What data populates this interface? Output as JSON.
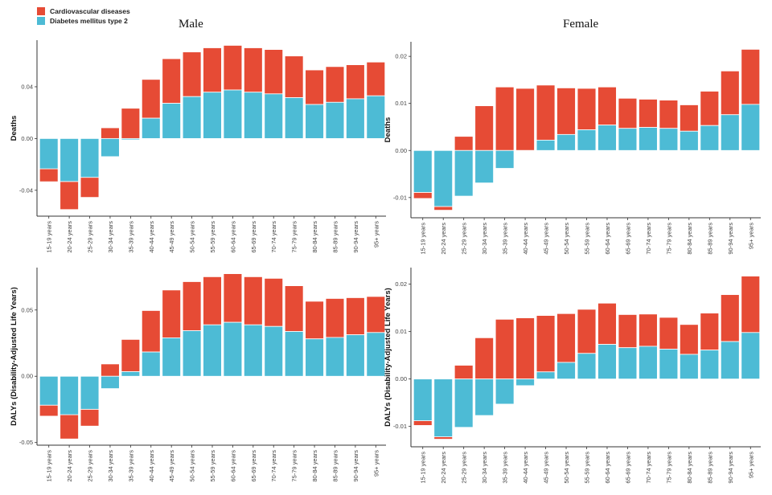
{
  "legend": {
    "items": [
      {
        "label": "Cardiovascular diseases",
        "color": "#E64B35"
      },
      {
        "label": "Diabetes mellitus type 2",
        "color": "#4DBBD5"
      }
    ]
  },
  "titles": {
    "male": "Male",
    "female": "Female"
  },
  "chart_data": [
    {
      "type": "bar",
      "stacked": true,
      "title": "Male",
      "ylabel": "Deaths",
      "xlabel": "",
      "ylim": [
        -0.06,
        0.076
      ],
      "yticks": [
        -0.04,
        0.0,
        0.04
      ],
      "ytick_labels": [
        "-0.04",
        "0.00",
        "0.04"
      ],
      "categories": [
        "15-19 years",
        "20-24 years",
        "25-29 years",
        "30-34 years",
        "35-39 years",
        "40-44 years",
        "45-49 years",
        "50-54 years",
        "55-59 years",
        "60-64 years",
        "65-69 years",
        "70-74 years",
        "75-79 years",
        "80-84 years",
        "85-89 years",
        "90-94 years",
        "95+ years"
      ],
      "series": [
        {
          "name": "Diabetes mellitus type 2",
          "values": [
            -0.0234,
            -0.0332,
            -0.03,
            -0.014,
            -0.001,
            0.0157,
            0.0272,
            0.0324,
            0.0358,
            0.0375,
            0.0358,
            0.0345,
            0.0316,
            0.0263,
            0.028,
            0.0307,
            0.033
          ]
        },
        {
          "name": "Cardiovascular diseases",
          "values": [
            -0.01,
            -0.0217,
            -0.0155,
            0.0083,
            0.0234,
            0.03,
            0.0345,
            0.0345,
            0.0343,
            0.0345,
            0.0343,
            0.0343,
            0.0322,
            0.0267,
            0.0276,
            0.0263,
            0.0261
          ]
        }
      ],
      "grid": false,
      "legend": "top-left"
    },
    {
      "type": "bar",
      "stacked": true,
      "title": "Female",
      "ylabel": "Deaths",
      "xlabel": "",
      "ylim": [
        -0.0143,
        0.0231
      ],
      "yticks": [
        -0.01,
        0.0,
        0.01,
        0.02
      ],
      "ytick_labels": [
        "-0.01",
        "0.00",
        "0.01",
        "0.02"
      ],
      "categories": [
        "15-19 years",
        "20-24 years",
        "25-29 years",
        "30-34 years",
        "35-39 years",
        "40-44 years",
        "45-49 years",
        "50-54 years",
        "55-59 years",
        "60-64 years",
        "65-69 years",
        "70-74 years",
        "75-79 years",
        "80-84 years",
        "85-89 years",
        "90-94 years",
        "95+ years"
      ],
      "series": [
        {
          "name": "Diabetes mellitus type 2",
          "values": [
            -0.0089,
            -0.0119,
            -0.0097,
            -0.0069,
            -0.0038,
            0.0,
            0.0022,
            0.0034,
            0.0044,
            0.0054,
            0.0047,
            0.0049,
            0.0047,
            0.0041,
            0.0053,
            0.0076,
            0.0098
          ]
        },
        {
          "name": "Cardiovascular diseases",
          "values": [
            -0.0013,
            -0.0008,
            0.003,
            0.0095,
            0.0135,
            0.0132,
            0.0117,
            0.0099,
            0.0088,
            0.0081,
            0.0064,
            0.006,
            0.006,
            0.0056,
            0.0073,
            0.0093,
            0.0117
          ]
        }
      ],
      "grid": false
    },
    {
      "type": "bar",
      "stacked": true,
      "title": "",
      "ylabel": "DALYs (Disability-Adjusted Life Years)",
      "xlabel": "",
      "ylim": [
        -0.052,
        0.082
      ],
      "yticks": [
        -0.05,
        0.0,
        0.05
      ],
      "ytick_labels": [
        "-0.05",
        "0.00",
        "0.05"
      ],
      "categories": [
        "15-19 years",
        "20-24 years",
        "25-29 years",
        "30-34 years",
        "35-39 years",
        "40-44 years",
        "45-49 years",
        "50-54 years",
        "55-59 years",
        "60-64 years",
        "65-69 years",
        "70-74 years",
        "75-79 years",
        "80-84 years",
        "85-89 years",
        "90-94 years",
        "95+ years"
      ],
      "series": [
        {
          "name": "Diabetes mellitus type 2",
          "values": [
            -0.0218,
            -0.029,
            -0.0249,
            -0.0093,
            0.0035,
            0.0183,
            0.029,
            0.0344,
            0.0388,
            0.0407,
            0.0388,
            0.0376,
            0.0338,
            0.0282,
            0.0293,
            0.0313,
            0.033
          ]
        },
        {
          "name": "Cardiovascular diseases",
          "values": [
            -0.0083,
            -0.0183,
            -0.0127,
            0.0093,
            0.0243,
            0.0313,
            0.0361,
            0.037,
            0.0363,
            0.0367,
            0.0363,
            0.0363,
            0.0345,
            0.0284,
            0.0294,
            0.028,
            0.0272
          ]
        }
      ],
      "grid": false
    },
    {
      "type": "bar",
      "stacked": true,
      "title": "",
      "ylabel": "DALYs (Disability-Adjusted Life Years)",
      "xlabel": "",
      "ylim": [
        -0.0143,
        0.0235
      ],
      "yticks": [
        -0.01,
        0.0,
        0.01,
        0.02
      ],
      "ytick_labels": [
        "-0.01",
        "0.00",
        "0.01",
        "0.02"
      ],
      "categories": [
        "15-19 years",
        "20-24 years",
        "25-29 years",
        "30-34 years",
        "35-39 years",
        "40-44 years",
        "45-49 years",
        "50-54 years",
        "55-59 years",
        "60-64 years",
        "65-69 years",
        "70-74 years",
        "75-79 years",
        "80-84 years",
        "85-89 years",
        "90-94 years",
        "95+ years"
      ],
      "series": [
        {
          "name": "Diabetes mellitus type 2",
          "values": [
            -0.0088,
            -0.0122,
            -0.0102,
            -0.0077,
            -0.0053,
            -0.0014,
            0.0015,
            0.0035,
            0.0054,
            0.0073,
            0.0066,
            0.0069,
            0.0063,
            0.0052,
            0.0061,
            0.0079,
            0.0098
          ]
        },
        {
          "name": "Cardiovascular diseases",
          "values": [
            -0.001,
            -0.0005,
            0.0029,
            0.0087,
            0.0126,
            0.0129,
            0.0119,
            0.0103,
            0.0093,
            0.0087,
            0.007,
            0.0068,
            0.0067,
            0.0063,
            0.0078,
            0.0099,
            0.0119
          ]
        }
      ],
      "grid": false
    }
  ]
}
